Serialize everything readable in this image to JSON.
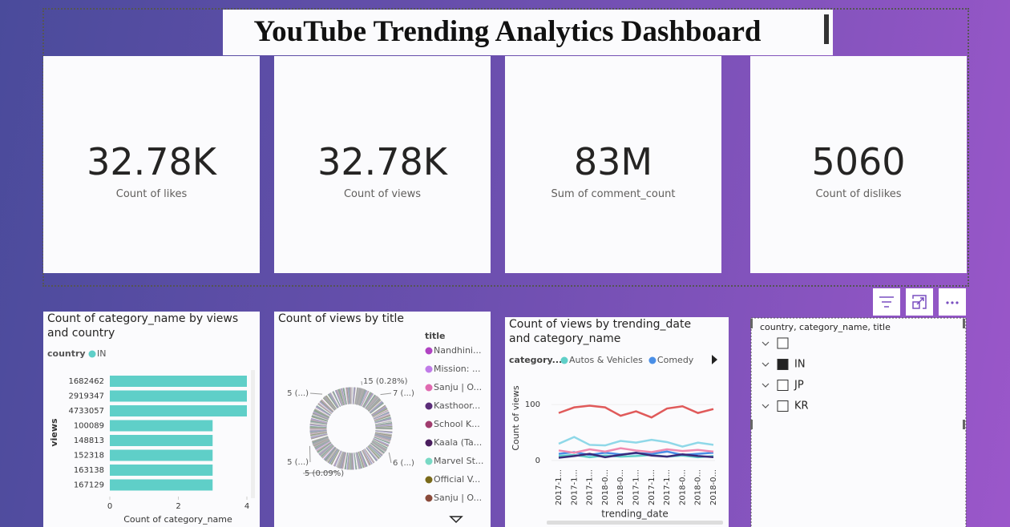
{
  "header": {
    "title": "YouTube Trending Analytics Dashboard"
  },
  "kpis": [
    {
      "value": "32.78K",
      "label": "Count of likes"
    },
    {
      "value": "32.78K",
      "label": "Count of views"
    },
    {
      "value": "83M",
      "label": "Sum of comment_count"
    },
    {
      "value": "5060",
      "label": "Count of dislikes"
    }
  ],
  "chart_data": [
    {
      "type": "bar",
      "orientation": "horizontal",
      "title": "Count of category_name by views and country",
      "legend_title": "country",
      "categories": [
        "1682462",
        "2919347",
        "4733057",
        "100089",
        "148813",
        "152318",
        "163138",
        "167129"
      ],
      "series": [
        {
          "name": "IN",
          "color": "#5fcfc8",
          "values": [
            4,
            4,
            4,
            3,
            3,
            3,
            3,
            3
          ]
        }
      ],
      "xlim": [
        0,
        4
      ],
      "xticks": [
        0,
        2,
        4
      ],
      "xlabel": "Count of category_name",
      "ylabel": "views"
    },
    {
      "type": "pie",
      "donut": true,
      "title": "Count of views by title",
      "legend_title": "title",
      "legend": [
        {
          "name": "Nandhini...",
          "color": "#b043c2"
        },
        {
          "name": "Mission: ...",
          "color": "#c07be8"
        },
        {
          "name": "Sanju | O...",
          "color": "#e06ab0"
        },
        {
          "name": "Kasthoor...",
          "color": "#5b2d7a"
        },
        {
          "name": "School K...",
          "color": "#a03c6e"
        },
        {
          "name": "Kaala (Ta...",
          "color": "#4a1e5e"
        },
        {
          "name": "Marvel St...",
          "color": "#79d9c5"
        },
        {
          "name": "Official V...",
          "color": "#7a6a1a"
        },
        {
          "name": "Sanju | O...",
          "color": "#8a4a3a"
        }
      ],
      "values": [
        15,
        7,
        6,
        5,
        5,
        5
      ],
      "value_labels": [
        "15 (0.28%)",
        "7 (...)",
        "6 (...)",
        "5 (0.09%)",
        "5 (...)",
        "5 (...)"
      ]
    },
    {
      "type": "line",
      "title": "Count of views by trending_date and category_name",
      "legend_title": "category...",
      "categories": [
        "2017-1...",
        "2017-1...",
        "2017-1...",
        "2018-0...",
        "2018-0...",
        "2017-1...",
        "2017-1...",
        "2017-1...",
        "2018-0...",
        "2018-0...",
        "2018-0..."
      ],
      "series": [
        {
          "name": "Autos & Vehicles",
          "color": "#5fcfc8",
          "values": [
            8,
            10,
            6,
            9,
            7,
            8,
            10,
            7,
            9,
            6,
            8
          ]
        },
        {
          "name": "Comedy",
          "color": "#4a8fe7",
          "values": [
            12,
            15,
            10,
            14,
            11,
            13,
            12,
            16,
            10,
            12,
            14
          ]
        },
        {
          "color": "#e05a5a",
          "values": [
            85,
            95,
            98,
            95,
            80,
            88,
            77,
            93,
            97,
            85,
            92
          ]
        },
        {
          "color": "#8fd8e8",
          "values": [
            30,
            42,
            28,
            27,
            35,
            32,
            37,
            33,
            25,
            32,
            28
          ]
        },
        {
          "color": "#f08ab0",
          "values": [
            18,
            14,
            20,
            16,
            22,
            18,
            15,
            20,
            17,
            19,
            16
          ]
        },
        {
          "color": "#3a2a7a",
          "values": [
            5,
            8,
            12,
            6,
            10,
            14,
            9,
            7,
            11,
            8,
            6
          ]
        }
      ],
      "ylim": [
        -4,
        136
      ],
      "yticks": [
        0,
        100
      ],
      "xlabel": "trending_date",
      "ylabel": "Count of views"
    }
  ],
  "slicer": {
    "title": "country, category_name, title",
    "items": [
      "IN",
      "JP",
      "KR"
    ],
    "checked": [
      true,
      false,
      false
    ]
  }
}
